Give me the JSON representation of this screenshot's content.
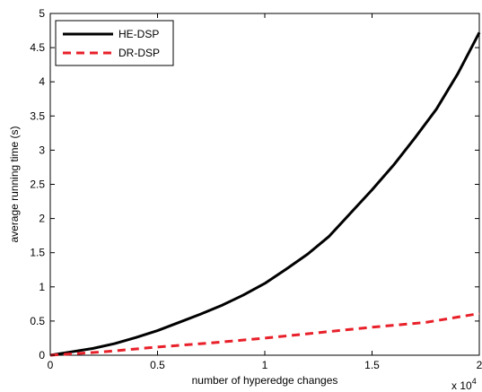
{
  "chart_data": {
    "type": "line",
    "title": "",
    "xlabel": "number of hyperedge changes",
    "ylabel": "average running time (s)",
    "xlim": [
      0,
      2
    ],
    "ylim": [
      0,
      5
    ],
    "x_multiplier_label": "x 10",
    "x_multiplier_exponent": "4",
    "xticks": [
      0,
      0.5,
      1,
      1.5,
      2
    ],
    "xtick_labels": [
      "0",
      "0.5",
      "1",
      "1.5",
      "2"
    ],
    "yticks": [
      0,
      0.5,
      1,
      1.5,
      2,
      2.5,
      3,
      3.5,
      4,
      4.5,
      5
    ],
    "ytick_labels": [
      "0",
      "0.5",
      "1",
      "1.5",
      "2",
      "2.5",
      "3",
      "3.5",
      "4",
      "4.5",
      "5"
    ],
    "grid": false,
    "legend_position": "top-left",
    "series": [
      {
        "name": "HE-DSP",
        "color": "#000000",
        "style": "solid",
        "x": [
          0,
          0.1,
          0.2,
          0.3,
          0.4,
          0.5,
          0.6,
          0.7,
          0.8,
          0.9,
          1.0,
          1.1,
          1.2,
          1.3,
          1.4,
          1.5,
          1.6,
          1.7,
          1.8,
          1.9,
          2.0
        ],
        "y": [
          0,
          0.05,
          0.1,
          0.17,
          0.26,
          0.36,
          0.48,
          0.6,
          0.73,
          0.88,
          1.05,
          1.26,
          1.48,
          1.74,
          2.08,
          2.42,
          2.78,
          3.18,
          3.6,
          4.12,
          4.72
        ]
      },
      {
        "name": "DR-DSP",
        "color": "#e8202a",
        "style": "dashed",
        "x": [
          0,
          0.25,
          0.5,
          0.75,
          1.0,
          1.25,
          1.5,
          1.75,
          2.0
        ],
        "y": [
          0,
          0.05,
          0.12,
          0.18,
          0.25,
          0.33,
          0.41,
          0.48,
          0.61
        ]
      }
    ]
  }
}
